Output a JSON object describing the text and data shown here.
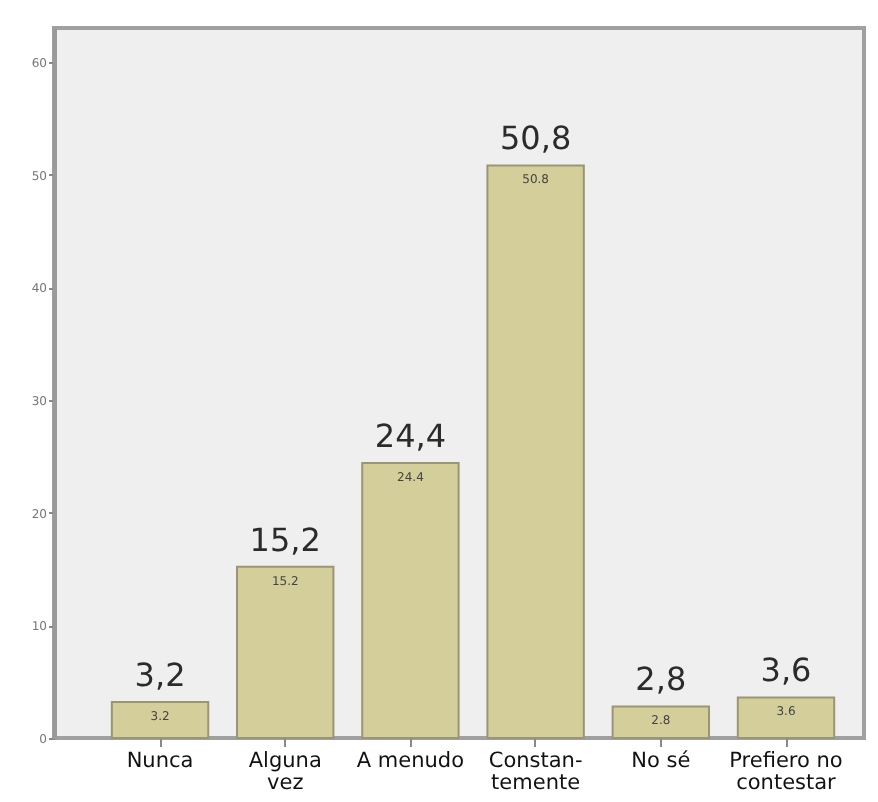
{
  "chart_data": {
    "type": "bar",
    "categories": [
      "Nunca",
      "Alguna\nvez",
      "A menudo",
      "Constan-\ntemente",
      "No sé",
      "Prefiero no\ncontestar"
    ],
    "values": [
      3.2,
      15.2,
      24.4,
      50.8,
      2.8,
      3.6
    ],
    "color": "#d4cf9a",
    "ylim": [
      0,
      63
    ],
    "yticks": [
      0,
      10,
      20,
      30,
      40,
      50,
      60
    ],
    "value_labels": [
      "3,2",
      "15,2",
      "24,4",
      "50,8",
      "2,8",
      "3,6"
    ],
    "annotations": [
      {
        "text": "3.2",
        "x": "Nunca",
        "y": 3.2
      },
      {
        "text": "15.2",
        "x": "Alguna\nvez",
        "y": 15.2
      },
      {
        "text": "24.4",
        "x": "A menudo",
        "y": 24.4
      },
      {
        "text": "50.8",
        "x": "Constan-\ntemente",
        "y": 50.8
      },
      {
        "text": "2.8",
        "x": "No sé",
        "y": 2.8
      },
      {
        "text": "3.6",
        "x": "Prefiero no\ncontestar",
        "y": 3.6
      }
    ]
  }
}
